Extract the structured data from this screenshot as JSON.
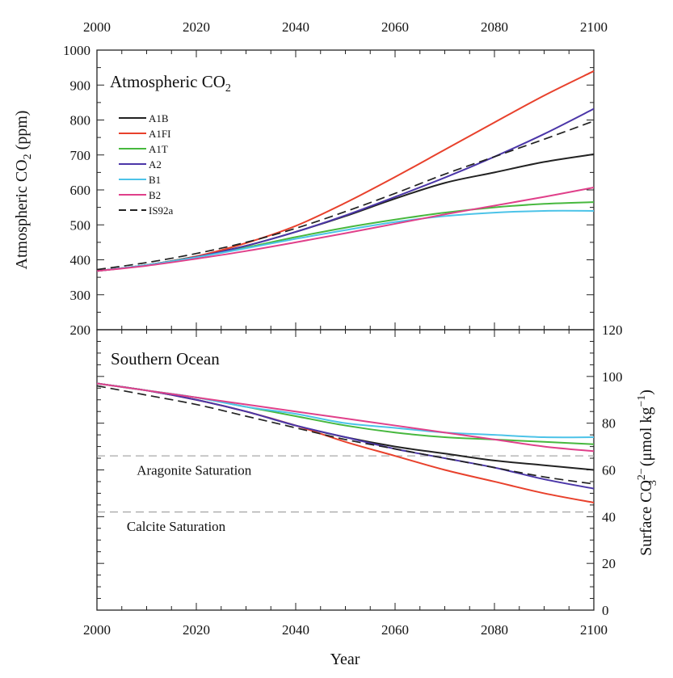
{
  "chart_data": [
    {
      "type": "line",
      "panel": "top",
      "title": "Atmospheric CO",
      "title_sub": "2",
      "ylabel_main": "Atmospheric CO",
      "ylabel_sub": "2",
      "ylabel_unit": "(ppm)",
      "xlim": [
        2000,
        2100
      ],
      "ylim": [
        200,
        1000
      ],
      "xticks": [
        2000,
        2020,
        2040,
        2060,
        2080,
        2100
      ],
      "yticks": [
        200,
        300,
        400,
        500,
        600,
        700,
        800,
        900,
        1000
      ],
      "legend_position": "upper-left",
      "series": [
        {
          "name": "A1B",
          "color": "#222222",
          "dash": false,
          "x": [
            2000,
            2010,
            2020,
            2030,
            2040,
            2050,
            2060,
            2070,
            2080,
            2090,
            2100
          ],
          "y": [
            368,
            385,
            410,
            440,
            480,
            525,
            575,
            620,
            650,
            680,
            702
          ]
        },
        {
          "name": "A1FI",
          "color": "#e8412c",
          "dash": false,
          "x": [
            2000,
            2010,
            2020,
            2030,
            2040,
            2050,
            2060,
            2070,
            2080,
            2090,
            2100
          ],
          "y": [
            368,
            385,
            410,
            448,
            497,
            563,
            637,
            715,
            793,
            870,
            940
          ]
        },
        {
          "name": "A1T",
          "color": "#47b83e",
          "dash": false,
          "x": [
            2000,
            2010,
            2020,
            2030,
            2040,
            2050,
            2060,
            2070,
            2080,
            2090,
            2100
          ],
          "y": [
            368,
            385,
            408,
            435,
            465,
            492,
            515,
            535,
            550,
            560,
            565
          ]
        },
        {
          "name": "A2",
          "color": "#4b36a8",
          "dash": false,
          "x": [
            2000,
            2010,
            2020,
            2030,
            2040,
            2050,
            2060,
            2070,
            2080,
            2090,
            2100
          ],
          "y": [
            368,
            385,
            408,
            440,
            480,
            527,
            580,
            635,
            695,
            760,
            832
          ]
        },
        {
          "name": "B1",
          "color": "#4cc3e8",
          "dash": false,
          "x": [
            2000,
            2010,
            2020,
            2030,
            2040,
            2050,
            2060,
            2070,
            2080,
            2090,
            2100
          ],
          "y": [
            368,
            385,
            407,
            433,
            460,
            485,
            508,
            525,
            535,
            540,
            540
          ]
        },
        {
          "name": "B2",
          "color": "#e0408a",
          "dash": false,
          "x": [
            2000,
            2010,
            2020,
            2030,
            2040,
            2050,
            2060,
            2070,
            2080,
            2090,
            2100
          ],
          "y": [
            368,
            383,
            403,
            425,
            450,
            476,
            503,
            530,
            555,
            580,
            607
          ]
        },
        {
          "name": "IS92a",
          "color": "#222222",
          "dash": true,
          "x": [
            2000,
            2010,
            2020,
            2030,
            2040,
            2050,
            2060,
            2070,
            2080,
            2090,
            2100
          ],
          "y": [
            372,
            392,
            418,
            450,
            490,
            538,
            590,
            645,
            695,
            745,
            797
          ]
        }
      ]
    },
    {
      "type": "line",
      "panel": "bottom",
      "title": "Southern Ocean",
      "xlabel": "Year",
      "ylabel_main": "Surface CO",
      "ylabel_sup": "2−",
      "ylabel_sub": "3",
      "ylabel_unit_pre": "(μmol kg",
      "ylabel_unit_sup": "−1",
      "ylabel_unit_post": ")",
      "xlim": [
        2000,
        2100
      ],
      "ylim": [
        0,
        120
      ],
      "xticks": [
        2000,
        2020,
        2040,
        2060,
        2080,
        2100
      ],
      "yticks": [
        0,
        20,
        40,
        60,
        80,
        100,
        120
      ],
      "annotations": [
        {
          "text": "Aragonite Saturation",
          "x": 2008,
          "y": 60,
          "level": 66
        },
        {
          "text": "Calcite Saturation",
          "x": 2006,
          "y": 36,
          "level": 42
        }
      ],
      "series": [
        {
          "name": "A1B",
          "color": "#222222",
          "dash": false,
          "x": [
            2000,
            2010,
            2020,
            2030,
            2040,
            2050,
            2060,
            2070,
            2080,
            2090,
            2100
          ],
          "y": [
            97,
            94,
            90,
            85,
            79,
            74,
            70,
            67,
            64,
            62,
            60
          ]
        },
        {
          "name": "A1FI",
          "color": "#e8412c",
          "dash": false,
          "x": [
            2000,
            2010,
            2020,
            2030,
            2040,
            2050,
            2060,
            2070,
            2080,
            2090,
            2100
          ],
          "y": [
            97,
            94,
            90,
            85,
            79,
            72,
            66,
            60,
            55,
            50,
            46
          ]
        },
        {
          "name": "A1T",
          "color": "#47b83e",
          "dash": false,
          "x": [
            2000,
            2010,
            2020,
            2030,
            2040,
            2050,
            2060,
            2070,
            2080,
            2090,
            2100
          ],
          "y": [
            97,
            94,
            91,
            87,
            83,
            79,
            76,
            74,
            73,
            72,
            71
          ]
        },
        {
          "name": "A2",
          "color": "#4b36a8",
          "dash": false,
          "x": [
            2000,
            2010,
            2020,
            2030,
            2040,
            2050,
            2060,
            2070,
            2080,
            2090,
            2100
          ],
          "y": [
            97,
            94,
            90,
            85,
            79,
            74,
            69,
            65,
            61,
            56,
            52
          ]
        },
        {
          "name": "B1",
          "color": "#4cc3e8",
          "dash": false,
          "x": [
            2000,
            2010,
            2020,
            2030,
            2040,
            2050,
            2060,
            2070,
            2080,
            2090,
            2100
          ],
          "y": [
            97,
            94,
            91,
            87,
            84,
            80,
            78,
            76,
            75,
            74,
            74
          ]
        },
        {
          "name": "B2",
          "color": "#e0408a",
          "dash": false,
          "x": [
            2000,
            2010,
            2020,
            2030,
            2040,
            2050,
            2060,
            2070,
            2080,
            2090,
            2100
          ],
          "y": [
            97,
            94,
            91,
            88,
            85,
            82,
            79,
            76,
            73,
            70,
            68
          ]
        },
        {
          "name": "IS92a",
          "color": "#222222",
          "dash": true,
          "x": [
            2000,
            2010,
            2020,
            2030,
            2040,
            2050,
            2060,
            2070,
            2080,
            2090,
            2100
          ],
          "y": [
            96,
            92,
            88,
            83,
            78,
            73,
            69,
            65,
            61,
            57,
            54
          ]
        }
      ]
    }
  ]
}
